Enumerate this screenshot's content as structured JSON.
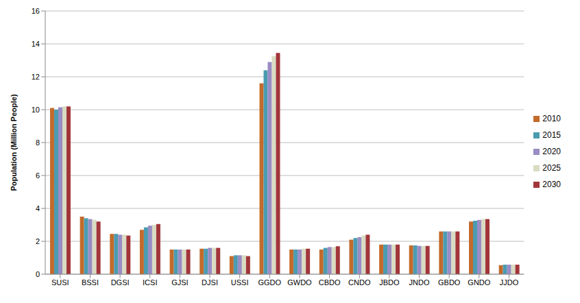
{
  "chart_data": {
    "type": "bar",
    "y_label": "Population (Million People)",
    "categories": [
      "SUSI",
      "BSSI",
      "DGSI",
      "ICSI",
      "GJSI",
      "DJSI",
      "USSI",
      "GGDO",
      "GWDO",
      "CBDO",
      "CNDO",
      "JBDO",
      "JNDO",
      "GBDO",
      "GNDO",
      "JJDO"
    ],
    "series": [
      {
        "name": "2010",
        "color": "#c26b2c",
        "values": [
          10.1,
          3.5,
          2.45,
          2.7,
          1.5,
          1.55,
          1.1,
          11.6,
          1.5,
          1.5,
          2.1,
          1.8,
          1.75,
          2.6,
          3.2,
          0.55
        ]
      },
      {
        "name": "2015",
        "color": "#4b9cb1",
        "values": [
          10.0,
          3.4,
          2.45,
          2.85,
          1.5,
          1.55,
          1.15,
          12.4,
          1.5,
          1.6,
          2.2,
          1.8,
          1.75,
          2.6,
          3.25,
          0.58
        ]
      },
      {
        "name": "2020",
        "color": "#9a8cc4",
        "values": [
          10.15,
          3.35,
          2.4,
          2.95,
          1.5,
          1.6,
          1.15,
          12.9,
          1.5,
          1.65,
          2.25,
          1.8,
          1.72,
          2.6,
          3.3,
          0.58
        ]
      },
      {
        "name": "2025",
        "color": "#d9dcc2",
        "values": [
          10.2,
          3.3,
          2.4,
          3.0,
          1.5,
          1.6,
          1.15,
          13.25,
          1.55,
          1.65,
          2.35,
          1.8,
          1.72,
          2.6,
          3.35,
          0.58
        ]
      },
      {
        "name": "2030",
        "color": "#a1353a",
        "values": [
          10.2,
          3.2,
          2.35,
          3.05,
          1.5,
          1.6,
          1.1,
          13.45,
          1.55,
          1.7,
          2.4,
          1.8,
          1.72,
          2.6,
          3.35,
          0.58
        ]
      }
    ],
    "ylim": [
      0,
      16
    ],
    "yticks": [
      0,
      2,
      4,
      6,
      8,
      10,
      12,
      14,
      16
    ],
    "grid": true,
    "legend": "right"
  }
}
